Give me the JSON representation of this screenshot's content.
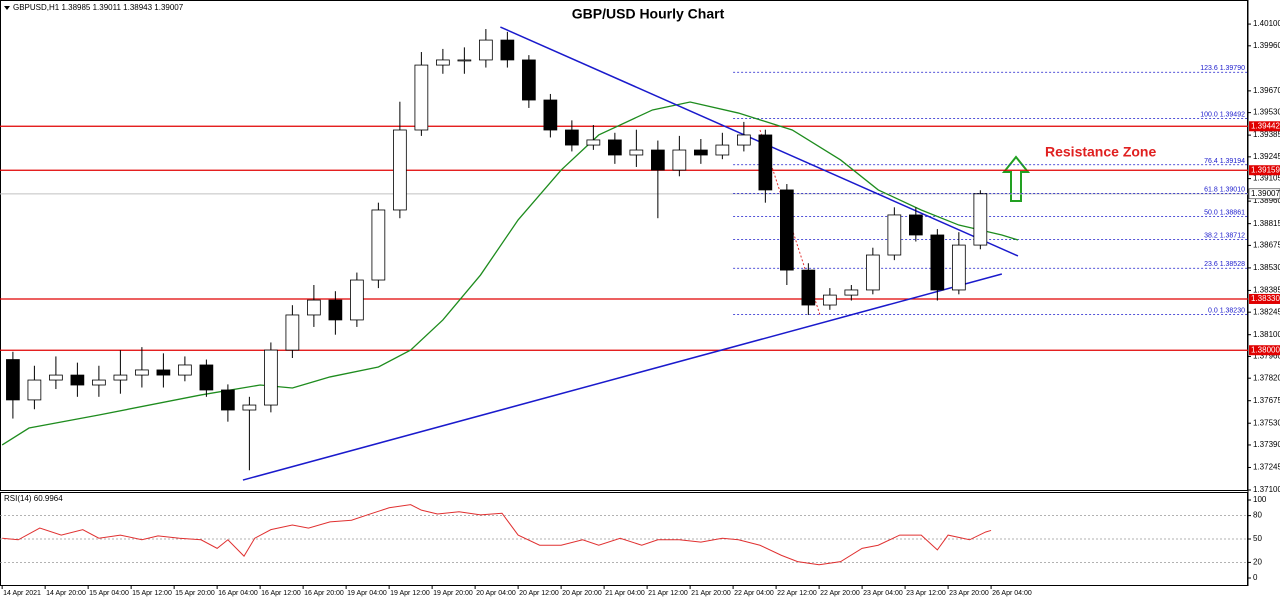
{
  "header": "GBPUSD,H1  1.38985 1.39011 1.38943 1.39007",
  "chart_data": [
    {
      "type": "candlestick",
      "title": "GBP/USD Hourly Chart",
      "annotation": "Resistance Zone",
      "xlim": [
        -0.4,
        231.8
      ],
      "ylim": [
        1.371,
        1.40255
      ],
      "x": [
        0,
        4,
        8,
        12,
        16,
        20,
        24,
        28,
        32,
        36,
        40,
        44,
        48,
        52,
        56,
        60,
        64,
        68,
        72,
        76,
        80,
        84,
        88,
        92,
        96,
        100,
        104,
        108,
        112,
        116,
        120,
        124,
        128,
        132,
        136,
        140,
        144,
        148,
        152,
        156,
        160,
        164,
        168,
        172,
        176,
        180
      ],
      "ohlc": [
        [
          1.3794,
          1.3799,
          1.3756,
          1.3768
        ],
        [
          1.3768,
          1.379,
          1.3762,
          1.37808
        ],
        [
          1.37808,
          1.3796,
          1.3775,
          1.3784
        ],
        [
          1.3784,
          1.3792,
          1.377,
          1.37776
        ],
        [
          1.37776,
          1.379,
          1.377,
          1.37808
        ],
        [
          1.37808,
          1.38,
          1.3772,
          1.3784
        ],
        [
          1.3784,
          1.3802,
          1.3776,
          1.37873
        ],
        [
          1.37873,
          1.3798,
          1.3776,
          1.3784
        ],
        [
          1.3784,
          1.3796,
          1.378,
          1.37905
        ],
        [
          1.37905,
          1.3794,
          1.377,
          1.37744
        ],
        [
          1.37744,
          1.3778,
          1.3754,
          1.37615
        ],
        [
          1.37615,
          1.377,
          1.37227,
          1.37647
        ],
        [
          1.37647,
          1.3805,
          1.376,
          1.38001
        ],
        [
          1.38001,
          1.3829,
          1.3795,
          1.38227
        ],
        [
          1.38227,
          1.3842,
          1.3815,
          1.38323
        ],
        [
          1.38323,
          1.3838,
          1.381,
          1.38195
        ],
        [
          1.38195,
          1.385,
          1.3815,
          1.38452
        ],
        [
          1.38452,
          1.3895,
          1.384,
          1.38903
        ],
        [
          1.38903,
          1.396,
          1.3885,
          1.39418
        ],
        [
          1.39418,
          1.3992,
          1.3938,
          1.39836
        ],
        [
          1.39836,
          1.3994,
          1.3978,
          1.39869
        ],
        [
          1.39869,
          1.3995,
          1.3978,
          1.39869
        ],
        [
          1.39869,
          1.40068,
          1.3982,
          1.39997
        ],
        [
          1.39997,
          1.4005,
          1.3982,
          1.39869
        ],
        [
          1.39869,
          1.399,
          1.3956,
          1.39611
        ],
        [
          1.39611,
          1.3965,
          1.3937,
          1.39418
        ],
        [
          1.39418,
          1.3948,
          1.3928,
          1.39321
        ],
        [
          1.39321,
          1.3945,
          1.3929,
          1.39354
        ],
        [
          1.39354,
          1.394,
          1.392,
          1.39257
        ],
        [
          1.39257,
          1.3942,
          1.3918,
          1.39289
        ],
        [
          1.39289,
          1.3935,
          1.3885,
          1.3916
        ],
        [
          1.3916,
          1.3938,
          1.3912,
          1.39289
        ],
        [
          1.39289,
          1.3936,
          1.392,
          1.39257
        ],
        [
          1.39257,
          1.394,
          1.3923,
          1.39321
        ],
        [
          1.39321,
          1.3947,
          1.3928,
          1.39386
        ],
        [
          1.39386,
          1.3942,
          1.3895,
          1.39032
        ],
        [
          1.39032,
          1.3907,
          1.3842,
          1.38516
        ],
        [
          1.38516,
          1.3856,
          1.38227,
          1.38291
        ],
        [
          1.38291,
          1.384,
          1.3826,
          1.38355
        ],
        [
          1.38355,
          1.3842,
          1.3832,
          1.38388
        ],
        [
          1.38388,
          1.3866,
          1.3836,
          1.38613
        ],
        [
          1.38613,
          1.3892,
          1.3858,
          1.38871
        ],
        [
          1.38871,
          1.3892,
          1.387,
          1.38742
        ],
        [
          1.38742,
          1.3878,
          1.3832,
          1.38388
        ],
        [
          1.38388,
          1.3876,
          1.3836,
          1.38677
        ],
        [
          1.38677,
          1.3903,
          1.3865,
          1.39007
        ]
      ],
      "up_color": "#ffffff",
      "down_color": "#000000",
      "ma": {
        "color": "#1e8c1e",
        "x": [
          0,
          5,
          18,
          37,
          48,
          54,
          61,
          70,
          76,
          82,
          89,
          96,
          104,
          111,
          121,
          128,
          137,
          147,
          156,
          163,
          171,
          178,
          186,
          189
        ],
        "values": [
          1.3739,
          1.37499,
          1.37583,
          1.37712,
          1.37776,
          1.37757,
          1.37828,
          1.37892,
          1.38001,
          1.38195,
          1.38484,
          1.38839,
          1.3916,
          1.39386,
          1.39547,
          1.39598,
          1.39527,
          1.39418,
          1.39225,
          1.39032,
          1.38903,
          1.38806,
          1.38742,
          1.3871
        ]
      },
      "trendlines": {
        "color": "#1a1acc",
        "lines": [
          {
            "x": [
              92.7,
              189
            ],
            "values": [
              1.40081,
              1.38607
            ]
          },
          {
            "x": [
              44.8,
              186
            ],
            "values": [
              1.37164,
              1.38491
            ]
          }
        ]
      },
      "levels": {
        "color": "#e00000",
        "values": [
          1.39442,
          1.39159,
          {
            "value": 1.3833,
            "label": "1.38330"
          },
          {
            "value": 1.38,
            "label": "1.38000"
          }
        ]
      },
      "current": 1.39007,
      "fib": {
        "color": "#1a1acc",
        "start": 136,
        "ratios": [
          "123.6",
          "100.0",
          "76.4",
          "61.8",
          "50.0",
          "38.2",
          "23.6",
          "0.0"
        ],
        "prices": [
          {
            "value": 1.3979,
            "label": "1.39790"
          },
          1.39492,
          1.39194,
          {
            "value": 1.3901,
            "label": "1.39010"
          },
          1.38861,
          1.38712,
          1.38528,
          {
            "value": 1.3823,
            "label": "1.38230"
          }
        ]
      },
      "yticks": [
        {
          "value": 1.401,
          "label": "1.40100"
        },
        {
          "value": 1.3996,
          "label": "1.39960"
        },
        {
          "value": 1.3967,
          "label": "1.39670"
        },
        {
          "value": 1.3953,
          "label": "1.39530"
        },
        1.39385,
        1.39245,
        1.39105,
        {
          "value": 1.3896,
          "label": "1.38960"
        },
        1.38815,
        1.38675,
        {
          "value": 1.3853,
          "label": "1.38530"
        },
        1.38385,
        1.38245,
        {
          "value": 1.381,
          "label": "1.38100"
        },
        {
          "value": 1.3796,
          "label": "1.37960"
        },
        {
          "value": 1.3782,
          "label": "1.37820"
        },
        1.37675,
        {
          "value": 1.3753,
          "label": "1.37530"
        },
        {
          "value": 1.3739,
          "label": "1.37390"
        },
        1.37245,
        {
          "value": 1.371,
          "label": "1.37100"
        }
      ],
      "xticks": [
        {
          "value": 0,
          "label": "14 Apr 2021"
        },
        {
          "value": 8,
          "label": "14 Apr 20:00"
        },
        {
          "value": 16,
          "label": "15 Apr 04:00"
        },
        {
          "value": 24,
          "label": "15 Apr 12:00"
        },
        {
          "value": 32,
          "label": "15 Apr 20:00"
        },
        {
          "value": 40,
          "label": "16 Apr 04:00"
        },
        {
          "value": 48,
          "label": "16 Apr 12:00"
        },
        {
          "value": 56,
          "label": "16 Apr 20:00"
        },
        {
          "value": 64,
          "label": "19 Apr 04:00"
        },
        {
          "value": 72,
          "label": "19 Apr 12:00"
        },
        {
          "value": 80,
          "label": "19 Apr 20:00"
        },
        {
          "value": 88,
          "label": "20 Apr 04:00"
        },
        {
          "value": 96,
          "label": "20 Apr 12:00"
        },
        {
          "value": 104,
          "label": "20 Apr 20:00"
        },
        {
          "value": 112,
          "label": "21 Apr 04:00"
        },
        {
          "value": 120,
          "label": "21 Apr 12:00"
        },
        {
          "value": 128,
          "label": "21 Apr 20:00"
        },
        {
          "value": 136,
          "label": "22 Apr 04:00"
        },
        {
          "value": 144,
          "label": "22 Apr 12:00"
        },
        {
          "value": 152,
          "label": "22 Apr 20:00"
        },
        {
          "value": 160,
          "label": "23 Apr 04:00"
        },
        {
          "value": 168,
          "label": "23 Apr 12:00"
        },
        {
          "value": 176,
          "label": "23 Apr 20:00"
        },
        {
          "value": 184,
          "label": "26 Apr 04:00"
        }
      ]
    },
    {
      "type": "line",
      "title": "RSI(14) 60.9964",
      "color": "#e03030",
      "xlim": [
        -0.4,
        231.8
      ],
      "ylim": [
        0,
        100
      ],
      "yticks": [
        100,
        80,
        50,
        20,
        0
      ],
      "levels": [
        80,
        50,
        20
      ],
      "x": [
        0,
        3,
        7,
        11,
        15,
        18,
        22,
        26,
        29,
        33,
        37,
        40,
        42,
        45,
        47,
        50,
        54,
        57,
        61,
        65,
        68,
        72,
        76,
        78,
        81,
        85,
        89,
        93,
        96,
        100,
        104,
        108,
        111,
        115,
        119,
        122,
        126,
        130,
        134,
        137,
        141,
        145,
        148,
        152,
        156,
        160,
        163,
        167,
        171,
        174,
        176,
        180,
        183,
        184
      ],
      "values": [
        51,
        49,
        64,
        55,
        62,
        51,
        55,
        49,
        54,
        51,
        49,
        38,
        49,
        28,
        51,
        62,
        68,
        64,
        72,
        74,
        81,
        90,
        94,
        87,
        82,
        85,
        81,
        83,
        55,
        42,
        42,
        49,
        42,
        51,
        42,
        49,
        49,
        46,
        51,
        49,
        42,
        29,
        21,
        17,
        21,
        38,
        42,
        55,
        55,
        36,
        55,
        49,
        59,
        61
      ]
    }
  ]
}
